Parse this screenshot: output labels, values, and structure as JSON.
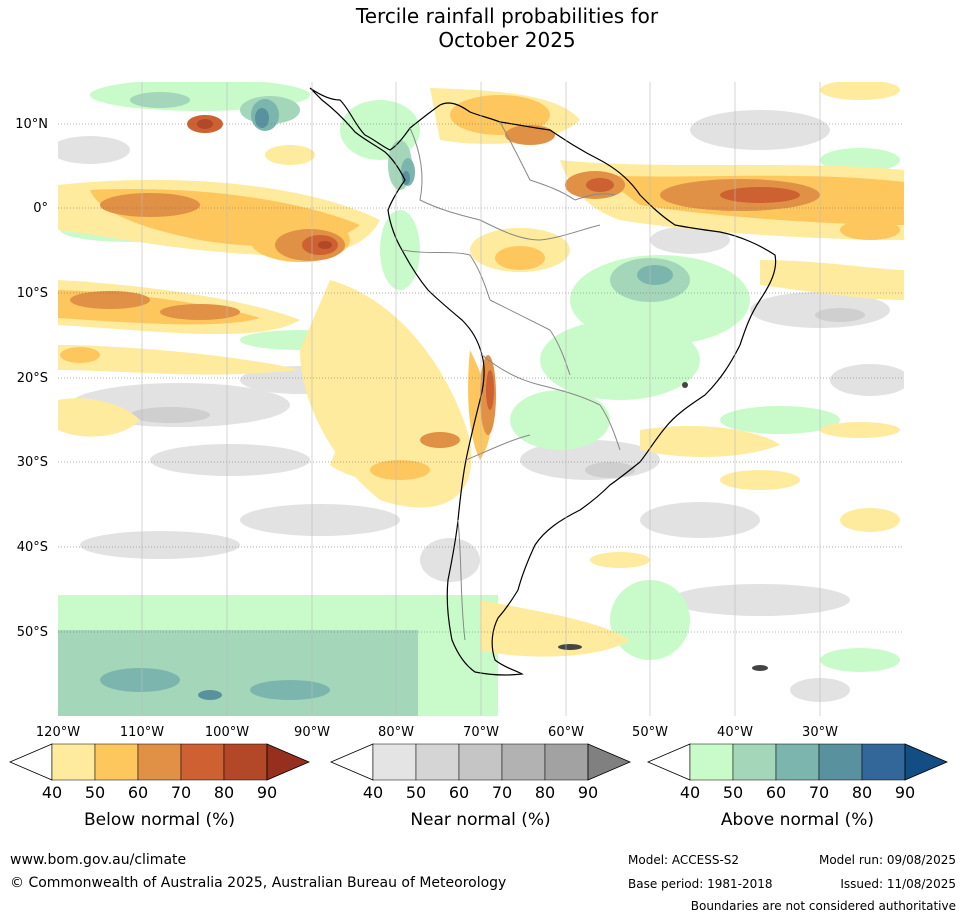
{
  "title_line1": "Tercile rainfall probabilities for",
  "title_line2": "October 2025",
  "lat_labels": [
    "10°N",
    "0°",
    "10°S",
    "20°S",
    "30°S",
    "40°S",
    "50°S"
  ],
  "lon_labels": [
    "120°W",
    "110°W",
    "100°W",
    "90°W",
    "80°W",
    "70°W",
    "60°W",
    "50°W",
    "40°W",
    "30°W"
  ],
  "colorbars": [
    {
      "label": "Below normal (%)",
      "ticks": [
        "40",
        "50",
        "60",
        "70",
        "80",
        "90"
      ],
      "colors": [
        "#ffffff",
        "#feeb9d",
        "#fdc75e",
        "#e09145",
        "#cd6131",
        "#b24827",
        "#962f1e"
      ]
    },
    {
      "label": "Near normal (%)",
      "ticks": [
        "40",
        "50",
        "60",
        "70",
        "80",
        "90"
      ],
      "colors": [
        "#ffffff",
        "#e4e4e4",
        "#d5d5d5",
        "#c5c5c5",
        "#b2b2b2",
        "#a2a2a2",
        "#808080"
      ]
    },
    {
      "label": "Above normal (%)",
      "ticks": [
        "40",
        "50",
        "60",
        "70",
        "80",
        "90"
      ],
      "colors": [
        "#ffffff",
        "#c9fbca",
        "#a4d7b9",
        "#7cb5ae",
        "#5a919f",
        "#336699",
        "#124d84"
      ]
    }
  ],
  "footer": {
    "website": "www.bom.gov.au/climate",
    "copyright": "© Commonwealth of Australia 2025, Australian Bureau of Meteorology",
    "model": "Model: ACCESS-S2",
    "model_run": "Model run: 09/08/2025",
    "base_period": "Base period: 1981-2018",
    "issued": "Issued: 11/08/2025",
    "disclaimer": "Boundaries are not considered authoritative"
  }
}
